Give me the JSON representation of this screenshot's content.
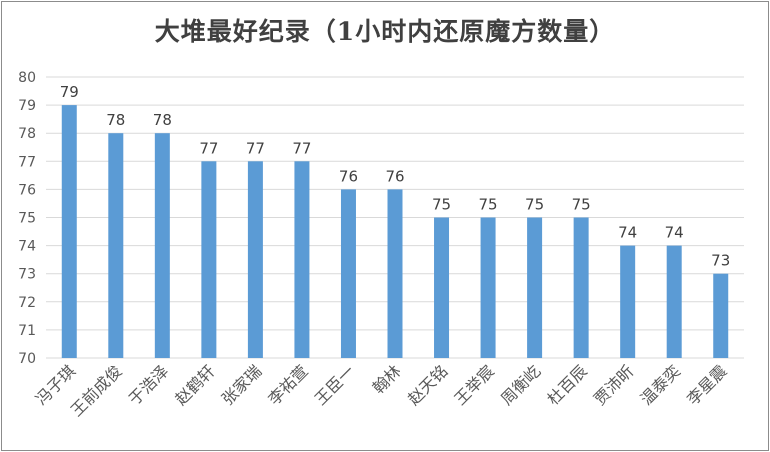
{
  "chart_data": {
    "type": "bar",
    "title": "大堆最好纪录（1小时内还原魔方数量）",
    "categories": [
      "冯子琪",
      "王前成俊",
      "于浩泽",
      "赵鹤轩",
      "张家瑞",
      "李祐萱",
      "王臣一",
      "翰林",
      "赵天铭",
      "王举宸",
      "周衡屹",
      "杜百辰",
      "贾沛昕",
      "温泰奕",
      "李星震"
    ],
    "values": [
      79,
      78,
      78,
      77,
      77,
      77,
      76,
      76,
      75,
      75,
      75,
      75,
      74,
      74,
      73
    ],
    "ylim": [
      70,
      80
    ],
    "yticks": [
      70,
      71,
      72,
      73,
      74,
      75,
      76,
      77,
      78,
      79,
      80
    ],
    "xlabel": "",
    "ylabel": "",
    "grid": true,
    "bar_color": "#5b9bd5",
    "grid_color": "#d9d9d9"
  }
}
